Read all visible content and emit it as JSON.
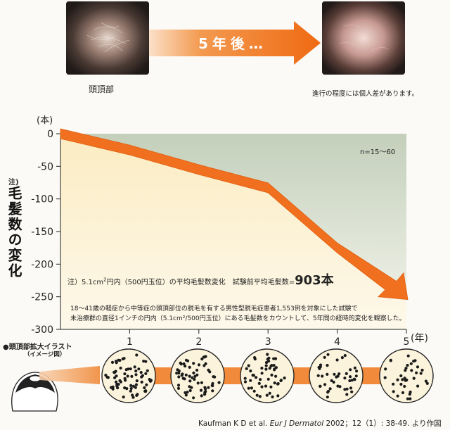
{
  "top": {
    "before_caption": "頭頂部",
    "arrow_text": "5年後…",
    "after_caption": "進行の程度には個人差があります。"
  },
  "side_label": {
    "note": "注)",
    "label": "毛髪数の変化"
  },
  "chart_data": {
    "type": "line",
    "y_unit": "(本)",
    "x_unit": "(年)",
    "n_label": "n=15〜60",
    "x": [
      0,
      1,
      2,
      3,
      4,
      5
    ],
    "x_tick_labels": [
      "1",
      "2",
      "3",
      "4",
      "5"
    ],
    "y_ticks": [
      0,
      -50,
      -100,
      -150,
      -200,
      -250,
      -300
    ],
    "values": [
      0,
      -25,
      -55,
      -83,
      -175,
      -250
    ],
    "ylim": [
      -300,
      0
    ],
    "xlim": [
      0,
      5
    ],
    "grid": false,
    "line_color": "#f07020"
  },
  "notes": {
    "prefix": "注）5.1cm",
    "sup": "2",
    "rest": "円内（500円玉位）の平均毛髪数変化　試験前平均毛髪数=",
    "emph": "903本"
  },
  "description": {
    "line1": "18〜41歳の軽症から中等症の頭頂部位の脱毛を有する男性型脱毛症患者1,553例を対象にした試験で",
    "line2": "未治療群の直径1インチの円内（5.1cm²/500円玉位）にある毛髪数をカウントして、5年間の経時的変化を観察した。"
  },
  "illustration": {
    "title": "●頭頂部拡大イラスト",
    "subtitle": "（イメージ図）"
  },
  "citation": {
    "authors": "Kaufman K D et al.",
    "journal": "Eur J Dermatol",
    "rest": "2002；12（1）: 38-49. より作図"
  },
  "colors": {
    "accent": "#f07020",
    "chart_bg_top": "#c8d4c0",
    "chart_bg_fill": "#fbf2d4"
  }
}
